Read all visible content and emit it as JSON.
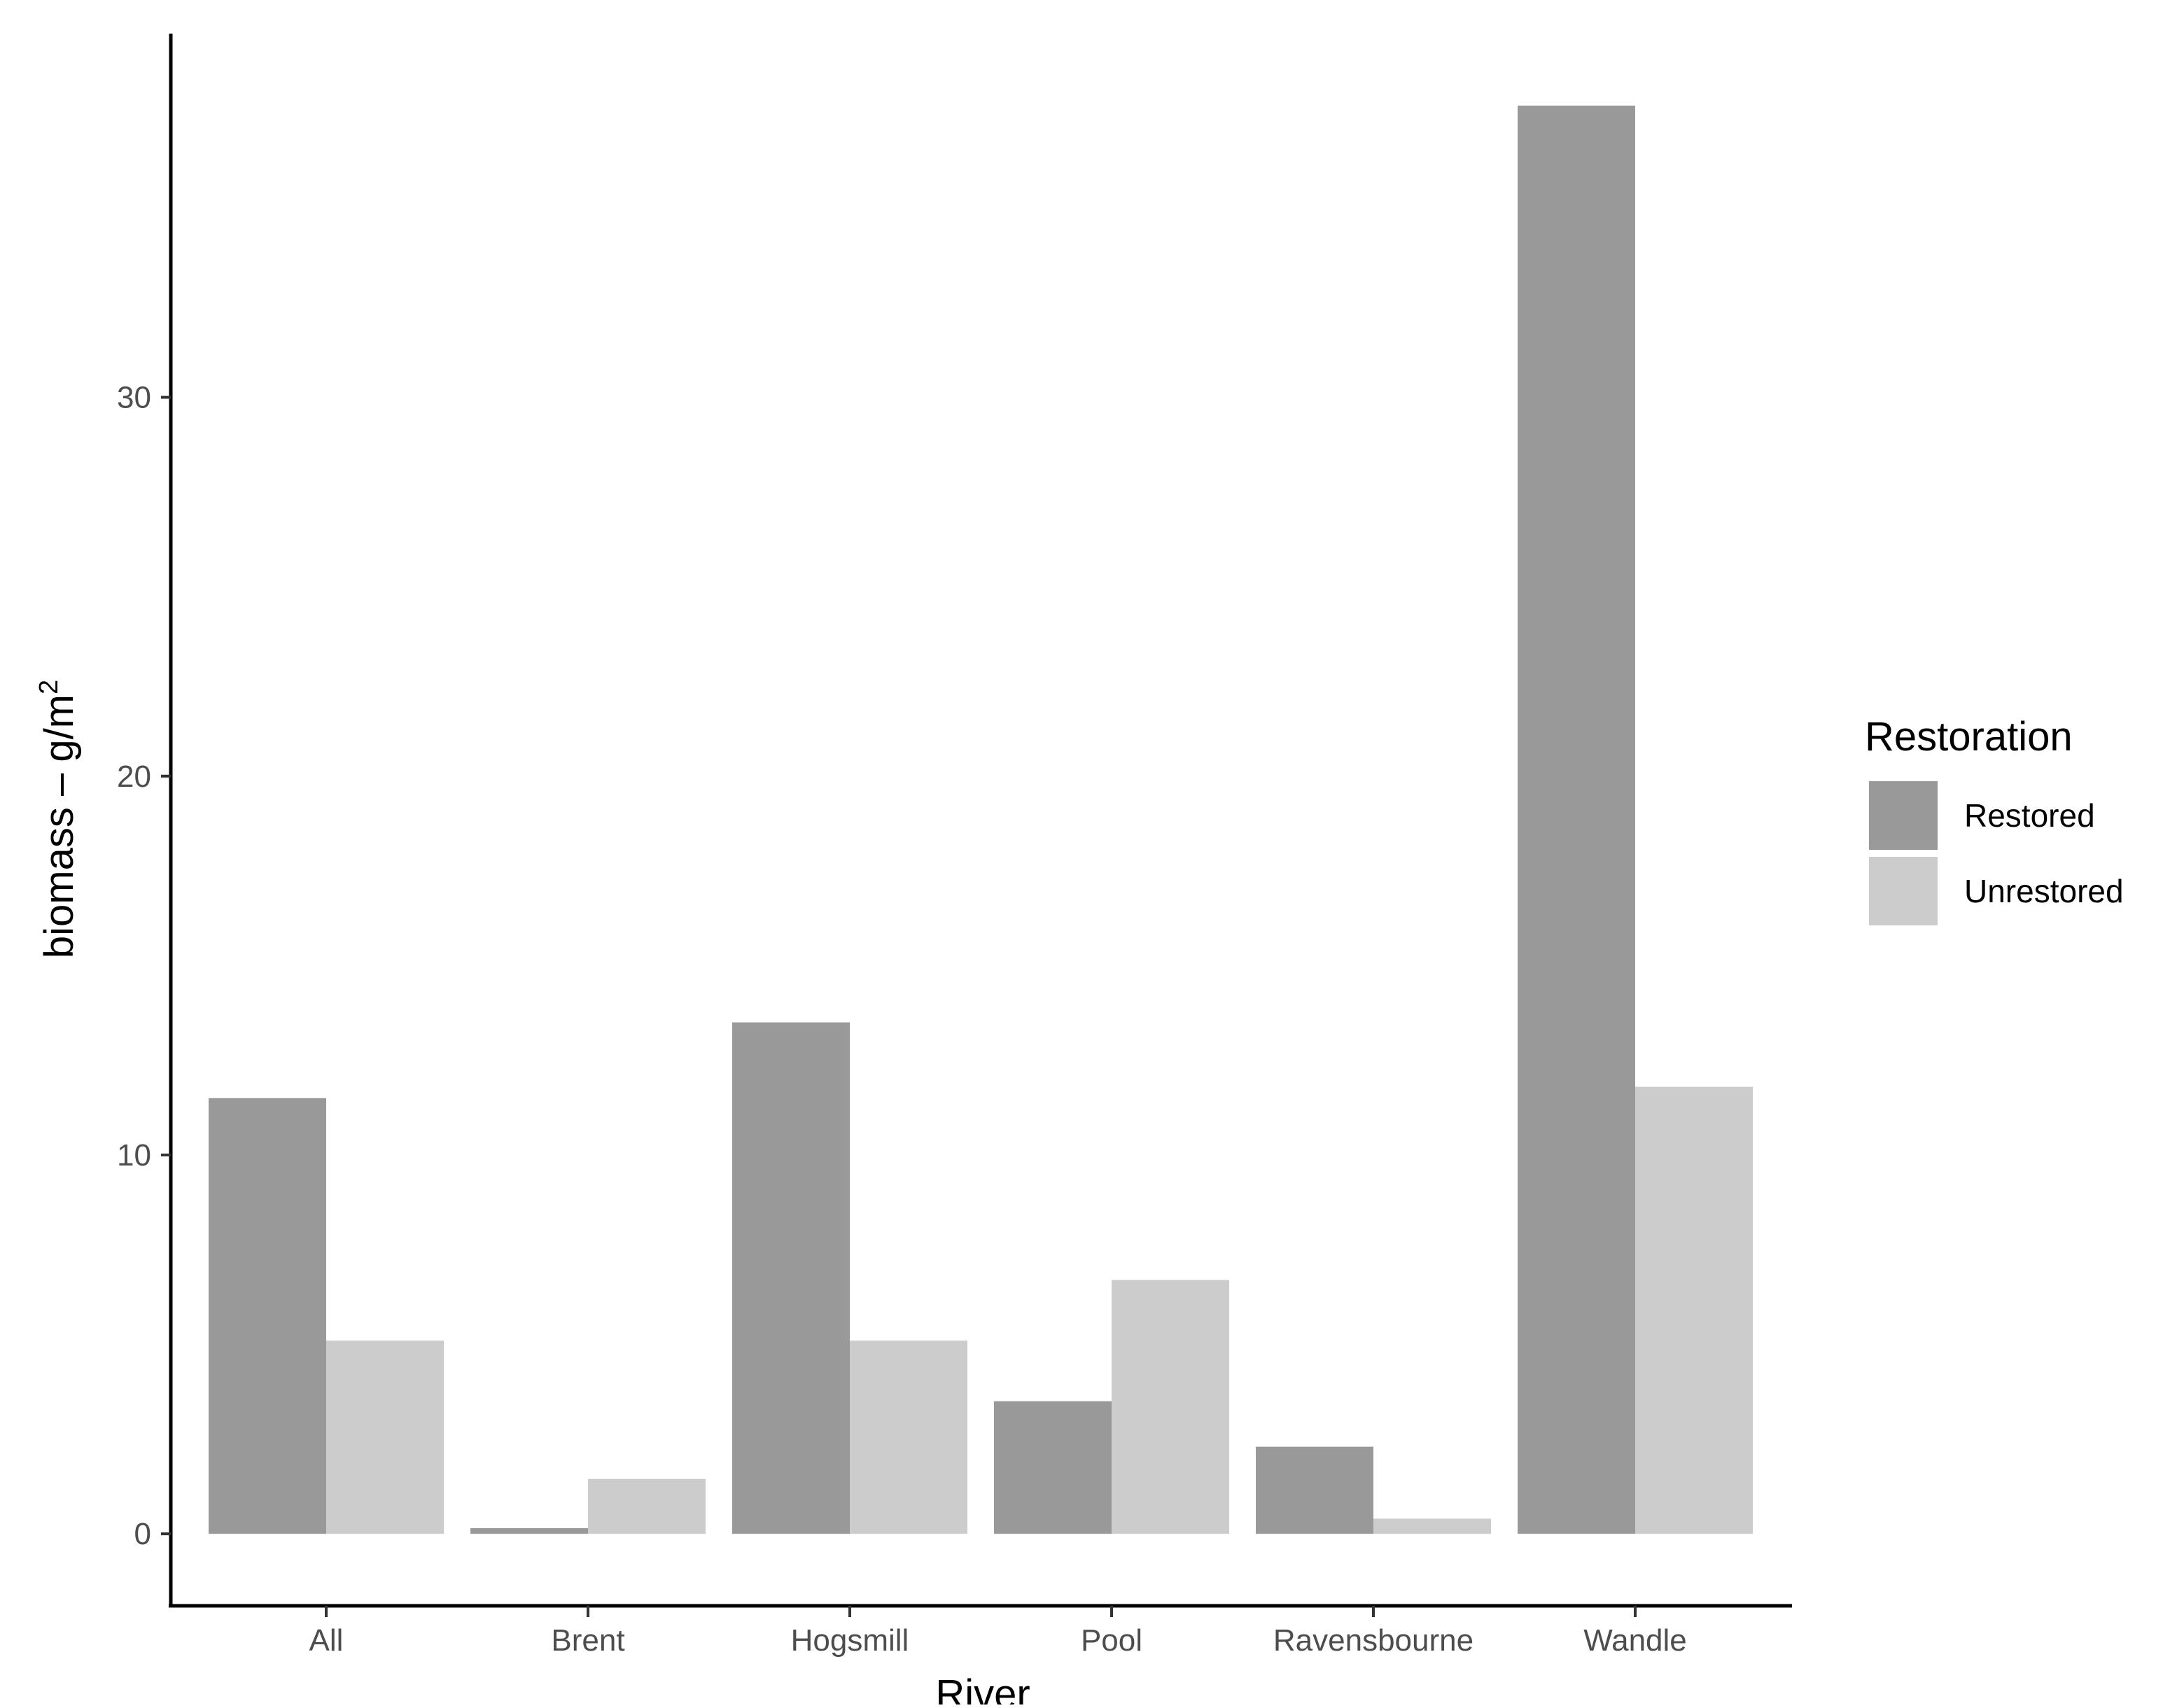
{
  "chart_data": {
    "type": "bar",
    "categories": [
      "All",
      "Brent",
      "Hogsmill",
      "Pool",
      "Ravensbourne",
      "Wandle"
    ],
    "series": [
      {
        "name": "Restored",
        "color": "#999999",
        "values": [
          11.5,
          0.15,
          13.5,
          3.5,
          2.3,
          37.7
        ]
      },
      {
        "name": "Unrestored",
        "color": "#cccccc",
        "values": [
          5.1,
          1.45,
          5.1,
          6.7,
          0.4,
          11.8
        ]
      }
    ],
    "xlabel": "River",
    "ylabel": "biomass – g/m",
    "ylabel_superscript": "2",
    "ylim": [
      -1.9,
      39.6
    ],
    "yticks": [
      0,
      10,
      20,
      30
    ],
    "grid": false,
    "legend": {
      "title": "Restoration",
      "placement": "right"
    }
  }
}
